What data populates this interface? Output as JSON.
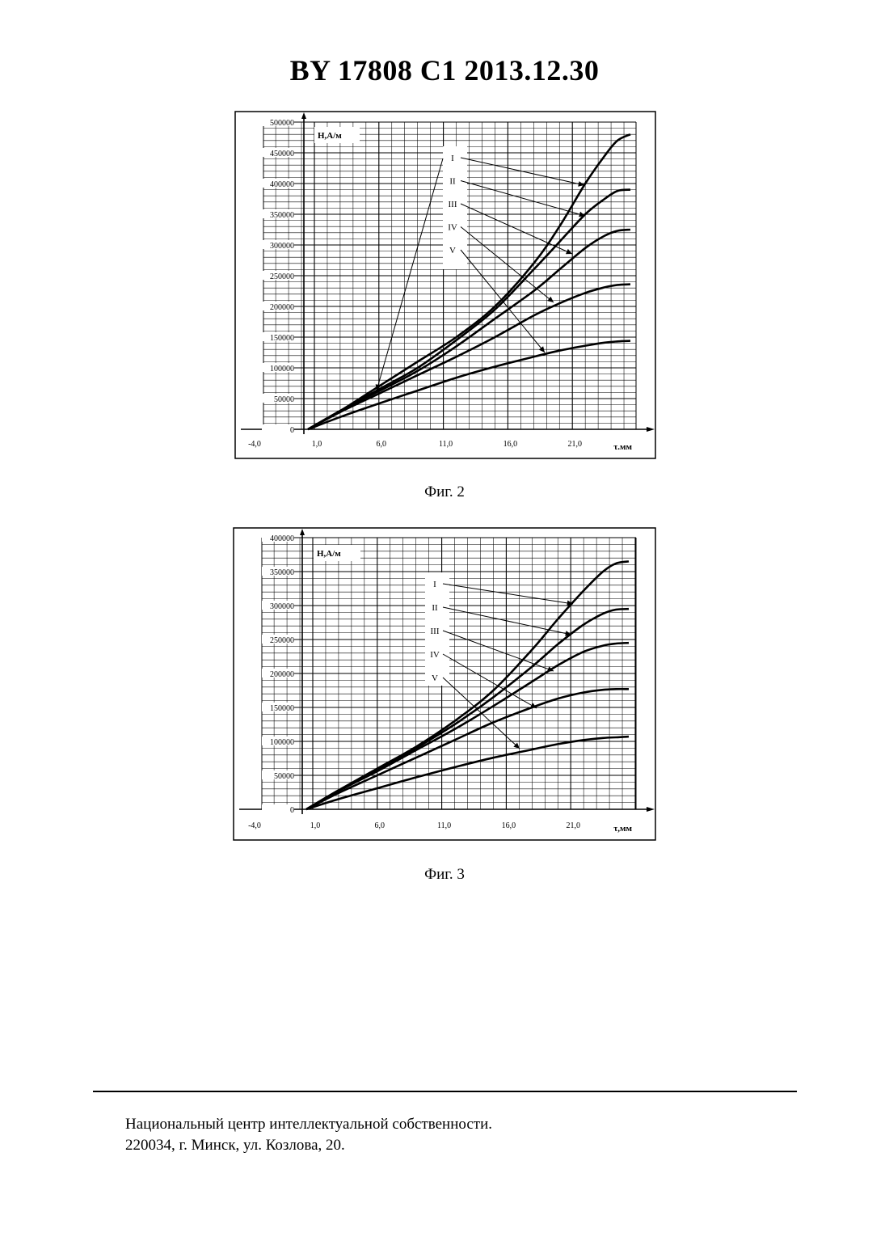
{
  "header": {
    "title": "BY  17808  C1  2013.12.30"
  },
  "figures": [
    {
      "caption": "Фиг. 2"
    },
    {
      "caption": "Фиг. 3"
    }
  ],
  "footer": {
    "line1": "Национальный центр интеллектуальной собственности.",
    "line2": "220034, г. Минск, ул. Козлова, 20."
  },
  "chart_data": [
    {
      "type": "line",
      "ylabel": "H,А/м",
      "xlabel": "τ.мм",
      "grid": true,
      "xlim": [
        -4.5,
        26
      ],
      "ylim": [
        0,
        500000
      ],
      "x_ticks": [
        "-4,0",
        "1,0",
        "6,0",
        "11,0",
        "16,0",
        "21,0"
      ],
      "y_ticks": [
        "0",
        "50000",
        "100000",
        "150000",
        "200000",
        "250000",
        "300000",
        "350000",
        "400000",
        "450000",
        "500000"
      ],
      "series": [
        {
          "name": "I",
          "x": [
            0.5,
            3,
            6,
            9,
            12,
            15,
            18,
            20,
            22,
            23.5,
            24.5,
            25.5
          ],
          "y": [
            0,
            30000,
            70000,
            110000,
            150000,
            200000,
            270000,
            330000,
            400000,
            445000,
            470000,
            480000
          ]
        },
        {
          "name": "II",
          "x": [
            0.5,
            3,
            6,
            9,
            12,
            15,
            18,
            20,
            22,
            23.5,
            24.5,
            25.5
          ],
          "y": [
            0,
            30000,
            65000,
            100000,
            145000,
            195000,
            260000,
            305000,
            350000,
            375000,
            388000,
            390000
          ]
        },
        {
          "name": "III",
          "x": [
            0.5,
            3,
            6,
            9,
            12,
            15,
            18,
            20,
            22,
            23.5,
            24.5,
            25.5
          ],
          "y": [
            0,
            30000,
            62000,
            95000,
            135000,
            180000,
            225000,
            260000,
            295000,
            315000,
            323000,
            325000
          ]
        },
        {
          "name": "IV",
          "x": [
            0.5,
            3,
            6,
            9,
            12,
            15,
            18,
            20,
            22,
            23.5,
            24.5,
            25.5
          ],
          "y": [
            0,
            28000,
            58000,
            88000,
            118000,
            150000,
            185000,
            205000,
            222000,
            231000,
            235000,
            236000
          ]
        },
        {
          "name": "V",
          "x": [
            0.5,
            3,
            6,
            9,
            12,
            15,
            18,
            20,
            22,
            23.5,
            24.5,
            25.5
          ],
          "y": [
            0,
            20000,
            42000,
            63000,
            84000,
            102000,
            118000,
            128000,
            136000,
            141000,
            143000,
            144000
          ]
        }
      ],
      "legend_labels": [
        "I",
        "II",
        "III",
        "IV",
        "V"
      ]
    },
    {
      "type": "line",
      "ylabel": "H,А/м",
      "xlabel": "τ,мм",
      "grid": true,
      "xlim": [
        -4.5,
        26
      ],
      "ylim": [
        0,
        400000
      ],
      "x_ticks": [
        "-4,0",
        "1,0",
        "6,0",
        "11,0",
        "16,0",
        "21,0"
      ],
      "y_ticks": [
        "0",
        "50000",
        "100000",
        "150000",
        "200000",
        "250000",
        "300000",
        "350000",
        "400000"
      ],
      "series": [
        {
          "name": "I",
          "x": [
            0.5,
            3,
            6,
            9,
            12,
            15,
            18,
            20,
            22,
            23.5,
            24.5,
            25.5
          ],
          "y": [
            0,
            28000,
            60000,
            92000,
            130000,
            175000,
            235000,
            280000,
            322000,
            350000,
            362000,
            365000
          ]
        },
        {
          "name": "II",
          "x": [
            0.5,
            3,
            6,
            9,
            12,
            15,
            18,
            20,
            22,
            23.5,
            24.5,
            25.5
          ],
          "y": [
            0,
            28000,
            58000,
            90000,
            125000,
            165000,
            210000,
            243000,
            272000,
            288000,
            294000,
            295000
          ]
        },
        {
          "name": "III",
          "x": [
            0.5,
            3,
            6,
            9,
            12,
            15,
            18,
            20,
            22,
            23.5,
            24.5,
            25.5
          ],
          "y": [
            0,
            27000,
            56000,
            87000,
            118000,
            152000,
            188000,
            212000,
            232000,
            241000,
            244000,
            245000
          ]
        },
        {
          "name": "IV",
          "x": [
            0.5,
            3,
            6,
            9,
            12,
            15,
            18,
            20,
            22,
            23.5,
            24.5,
            25.5
          ],
          "y": [
            0,
            24000,
            50000,
            76000,
            102000,
            128000,
            150000,
            163000,
            172000,
            176000,
            177000,
            177000
          ]
        },
        {
          "name": "V",
          "x": [
            0.5,
            3,
            6,
            9,
            12,
            15,
            18,
            20,
            22,
            23.5,
            24.5,
            25.5
          ],
          "y": [
            0,
            15000,
            31000,
            47000,
            62000,
            76000,
            88000,
            96000,
            102000,
            105000,
            106000,
            107000
          ]
        }
      ],
      "legend_labels": [
        "I",
        "II",
        "III",
        "IV",
        "V"
      ]
    }
  ]
}
